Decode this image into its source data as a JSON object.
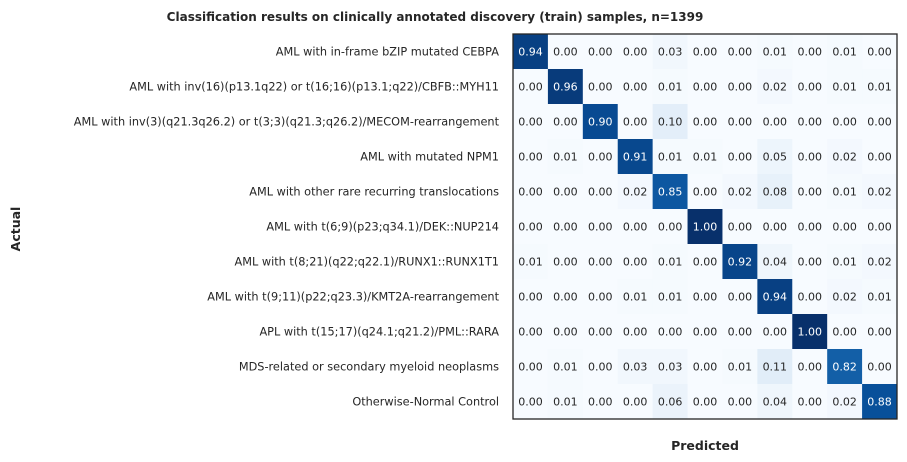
{
  "chart_data": {
    "type": "heatmap",
    "title": "Classification results on clinically annotated discovery (train) samples, n=1399",
    "xlabel": "Predicted",
    "ylabel": "Actual",
    "colormap": "Blues",
    "value_range": [
      0,
      1
    ],
    "grid": false,
    "x_tick_labels_visible": false,
    "rows": [
      "AML with in-frame bZIP mutated CEBPA",
      "AML with inv(16)(p13.1q22) or t(16;16)(p13.1;q22)/CBFB::MYH11",
      "AML with inv(3)(q21.3q26.2) or t(3;3)(q21.3;q26.2)/MECOM-rearrangement",
      "AML with mutated NPM1",
      "AML with other rare recurring translocations",
      "AML with t(6;9)(p23;q34.1)/DEK::NUP214",
      "AML with t(8;21)(q22;q22.1)/RUNX1::RUNX1T1",
      "AML with t(9;11)(p22;q23.3)/KMT2A-rearrangement",
      "APL with t(15;17)(q24.1;q21.2)/PML::RARA",
      "MDS-related or secondary myeloid neoplasms",
      "Otherwise-Normal Control"
    ],
    "values": [
      [
        0.94,
        0.0,
        0.0,
        0.0,
        0.03,
        0.0,
        0.0,
        0.01,
        0.0,
        0.01,
        0.0
      ],
      [
        0.0,
        0.96,
        0.0,
        0.0,
        0.01,
        0.0,
        0.0,
        0.02,
        0.0,
        0.01,
        0.01
      ],
      [
        0.0,
        0.0,
        0.9,
        0.0,
        0.1,
        0.0,
        0.0,
        0.0,
        0.0,
        0.0,
        0.0
      ],
      [
        0.0,
        0.01,
        0.0,
        0.91,
        0.01,
        0.01,
        0.0,
        0.05,
        0.0,
        0.02,
        0.0
      ],
      [
        0.0,
        0.0,
        0.0,
        0.02,
        0.85,
        0.0,
        0.02,
        0.08,
        0.0,
        0.01,
        0.02
      ],
      [
        0.0,
        0.0,
        0.0,
        0.0,
        0.0,
        1.0,
        0.0,
        0.0,
        0.0,
        0.0,
        0.0
      ],
      [
        0.01,
        0.0,
        0.0,
        0.0,
        0.01,
        0.0,
        0.92,
        0.04,
        0.0,
        0.01,
        0.02
      ],
      [
        0.0,
        0.0,
        0.0,
        0.01,
        0.01,
        0.0,
        0.0,
        0.94,
        0.0,
        0.02,
        0.01
      ],
      [
        0.0,
        0.0,
        0.0,
        0.0,
        0.0,
        0.0,
        0.0,
        0.0,
        1.0,
        0.0,
        0.0
      ],
      [
        0.0,
        0.01,
        0.0,
        0.03,
        0.03,
        0.0,
        0.01,
        0.11,
        0.0,
        0.82,
        0.0
      ],
      [
        0.0,
        0.01,
        0.0,
        0.0,
        0.06,
        0.0,
        0.0,
        0.04,
        0.0,
        0.02,
        0.88
      ]
    ]
  }
}
